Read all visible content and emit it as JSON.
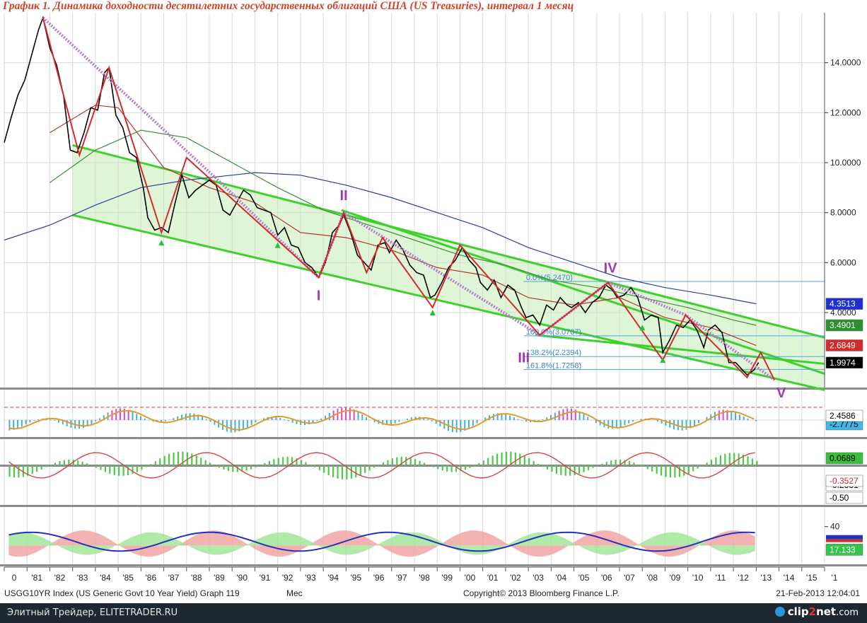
{
  "chart_data": {
    "type": "line",
    "title": "График 1.   Динамика доходности десятилетних государственных облигаций США (US Treasuries), интервал 1 месяц",
    "x_ticks": [
      "0",
      "'81",
      "'82",
      "'83",
      "'84",
      "'85",
      "'86",
      "'87",
      "'88",
      "'89",
      "'90",
      "'91",
      "'92",
      "'93",
      "'94",
      "'95",
      "'96",
      "'97",
      "'98",
      "'99",
      "'00",
      "'01",
      "'02",
      "'03",
      "'04",
      "'05",
      "'06",
      "'07",
      "'08",
      "'09",
      "'10",
      "'11",
      "'12",
      "'13",
      "'14",
      "'15",
      "'1"
    ],
    "xlim": [
      1980,
      2016
    ],
    "main_panel": {
      "ylim": [
        1.0,
        16.0
      ],
      "y_ticks": [
        "14.0000",
        "12.0000",
        "10.0000",
        "8.0000",
        "6.0000",
        "4.0000"
      ],
      "series": [
        {
          "values": [
            [
              1980.0,
              10.8
            ],
            [
              1980.3,
              11.8
            ],
            [
              1980.6,
              12.7
            ],
            [
              1980.9,
              13.3
            ],
            [
              1981.2,
              14.3
            ],
            [
              1981.5,
              15.3
            ],
            [
              1981.7,
              15.8
            ],
            [
              1982.0,
              14.6
            ],
            [
              1982.3,
              13.9
            ],
            [
              1982.6,
              12.7
            ],
            [
              1982.9,
              10.5
            ],
            [
              1983.2,
              10.4
            ],
            [
              1983.5,
              11.2
            ],
            [
              1983.8,
              12.2
            ],
            [
              1984.1,
              12.1
            ],
            [
              1984.4,
              13.6
            ],
            [
              1984.6,
              13.8
            ],
            [
              1984.9,
              11.9
            ],
            [
              1985.2,
              11.4
            ],
            [
              1985.5,
              10.4
            ],
            [
              1985.8,
              10.2
            ],
            [
              1986.1,
              9.0
            ],
            [
              1986.3,
              7.8
            ],
            [
              1986.6,
              7.3
            ],
            [
              1986.9,
              7.4
            ],
            [
              1987.2,
              7.2
            ],
            [
              1987.5,
              8.4
            ],
            [
              1987.8,
              9.5
            ],
            [
              1988.1,
              8.6
            ],
            [
              1988.4,
              8.9
            ],
            [
              1988.7,
              9.1
            ],
            [
              1989.0,
              9.3
            ],
            [
              1989.3,
              9.1
            ],
            [
              1989.6,
              8.1
            ],
            [
              1989.9,
              7.9
            ],
            [
              1990.2,
              8.4
            ],
            [
              1990.5,
              8.9
            ],
            [
              1990.8,
              8.7
            ],
            [
              1991.1,
              8.2
            ],
            [
              1991.4,
              8.1
            ],
            [
              1991.7,
              8.0
            ],
            [
              1992.0,
              7.1
            ],
            [
              1992.3,
              7.4
            ],
            [
              1992.6,
              6.7
            ],
            [
              1992.9,
              6.6
            ],
            [
              1993.2,
              6.0
            ],
            [
              1993.5,
              5.8
            ],
            [
              1993.8,
              5.4
            ],
            [
              1994.1,
              6.0
            ],
            [
              1994.4,
              7.2
            ],
            [
              1994.7,
              7.5
            ],
            [
              1994.9,
              7.9
            ],
            [
              1995.2,
              7.2
            ],
            [
              1995.5,
              6.3
            ],
            [
              1995.8,
              6.0
            ],
            [
              1996.1,
              5.7
            ],
            [
              1996.4,
              6.7
            ],
            [
              1996.7,
              6.8
            ],
            [
              1996.9,
              6.4
            ],
            [
              1997.2,
              6.9
            ],
            [
              1997.5,
              6.5
            ],
            [
              1997.8,
              5.9
            ],
            [
              1998.1,
              5.6
            ],
            [
              1998.4,
              5.5
            ],
            [
              1998.7,
              4.6
            ],
            [
              1998.9,
              4.7
            ],
            [
              1999.2,
              5.2
            ],
            [
              1999.5,
              5.8
            ],
            [
              1999.8,
              6.1
            ],
            [
              2000.1,
              6.6
            ],
            [
              2000.4,
              6.1
            ],
            [
              2000.7,
              5.8
            ],
            [
              2000.9,
              5.2
            ],
            [
              2001.2,
              4.9
            ],
            [
              2001.5,
              5.3
            ],
            [
              2001.8,
              4.6
            ],
            [
              2002.1,
              5.1
            ],
            [
              2002.4,
              4.9
            ],
            [
              2002.7,
              4.2
            ],
            [
              2002.9,
              3.8
            ],
            [
              2003.2,
              3.9
            ],
            [
              2003.5,
              3.5
            ],
            [
              2003.8,
              4.3
            ],
            [
              2004.1,
              4.1
            ],
            [
              2004.4,
              4.6
            ],
            [
              2004.7,
              4.3
            ],
            [
              2004.9,
              4.2
            ],
            [
              2005.2,
              4.4
            ],
            [
              2005.5,
              4.0
            ],
            [
              2005.8,
              4.4
            ],
            [
              2006.1,
              4.6
            ],
            [
              2006.4,
              5.1
            ],
            [
              2006.7,
              4.9
            ],
            [
              2006.9,
              4.6
            ],
            [
              2007.2,
              4.7
            ],
            [
              2007.5,
              5.0
            ],
            [
              2007.8,
              4.6
            ],
            [
              2008.1,
              3.7
            ],
            [
              2008.4,
              3.9
            ],
            [
              2008.7,
              3.8
            ],
            [
              2008.9,
              2.4
            ],
            [
              2009.2,
              2.9
            ],
            [
              2009.5,
              3.5
            ],
            [
              2009.8,
              3.4
            ],
            [
              2010.1,
              3.7
            ],
            [
              2010.4,
              3.3
            ],
            [
              2010.7,
              2.6
            ],
            [
              2010.9,
              3.3
            ],
            [
              2011.2,
              3.5
            ],
            [
              2011.5,
              3.2
            ],
            [
              2011.8,
              2.0
            ],
            [
              2012.1,
              2.0
            ],
            [
              2012.4,
              1.7
            ],
            [
              2012.6,
              1.5
            ],
            [
              2012.9,
              1.7
            ],
            [
              2013.1,
              2.0
            ]
          ],
          "color": "#000000"
        }
      ],
      "zigzag": [
        [
          1981.7,
          15.8
        ],
        [
          1983.3,
          10.3
        ],
        [
          1984.6,
          13.8
        ],
        [
          1986.9,
          7.2
        ],
        [
          1988.0,
          10.2
        ],
        [
          1993.8,
          5.4
        ],
        [
          1994.9,
          8.0
        ],
        [
          1995.9,
          5.6
        ],
        [
          1996.6,
          7.0
        ],
        [
          1998.8,
          4.2
        ],
        [
          2000.0,
          6.7
        ],
        [
          2003.5,
          3.1
        ],
        [
          2006.5,
          5.2
        ],
        [
          2008.9,
          2.1
        ],
        [
          2009.9,
          3.9
        ],
        [
          2012.6,
          1.4
        ],
        [
          2013.2,
          2.4
        ],
        [
          2013.8,
          1.3
        ]
      ],
      "moving_averages": [
        {
          "color": "#2a3f9c",
          "values": [
            [
              1980.0,
              6.9
            ],
            [
              1982.0,
              7.5
            ],
            [
              1984.0,
              8.3
            ],
            [
              1986.0,
              9.0
            ],
            [
              1988.0,
              9.3
            ],
            [
              1990.0,
              9.5
            ],
            [
              1991.0,
              9.6
            ],
            [
              1993.0,
              9.5
            ],
            [
              1995.0,
              9.1
            ],
            [
              1997.0,
              8.6
            ],
            [
              1999.0,
              8.0
            ],
            [
              2001.0,
              7.4
            ],
            [
              2003.0,
              6.6
            ],
            [
              2005.0,
              6.0
            ],
            [
              2007.0,
              5.4
            ],
            [
              2009.0,
              5.0
            ],
            [
              2011.0,
              4.7
            ],
            [
              2013.0,
              4.35
            ]
          ]
        },
        {
          "color": "#3c8f3a",
          "values": [
            [
              1982.0,
              9.2
            ],
            [
              1984.0,
              10.5
            ],
            [
              1986.0,
              11.3
            ],
            [
              1988.0,
              11.0
            ],
            [
              1990.0,
              10.0
            ],
            [
              1992.0,
              9.0
            ],
            [
              1994.0,
              8.1
            ],
            [
              1996.0,
              7.5
            ],
            [
              1998.0,
              6.9
            ],
            [
              2000.0,
              6.3
            ],
            [
              2002.0,
              5.9
            ],
            [
              2004.0,
              5.3
            ],
            [
              2006.0,
              5.0
            ],
            [
              2008.0,
              4.6
            ],
            [
              2010.0,
              4.2
            ],
            [
              2012.0,
              3.7
            ],
            [
              2013.0,
              3.49
            ]
          ]
        },
        {
          "color": "#b03a2e",
          "values": [
            [
              1982.0,
              11.2
            ],
            [
              1984.0,
              12.3
            ],
            [
              1985.0,
              12.2
            ],
            [
              1987.0,
              9.8
            ],
            [
              1989.0,
              9.0
            ],
            [
              1991.0,
              8.4
            ],
            [
              1993.0,
              7.2
            ],
            [
              1995.0,
              7.0
            ],
            [
              1997.0,
              6.5
            ],
            [
              1999.0,
              5.8
            ],
            [
              2001.0,
              5.5
            ],
            [
              2003.0,
              4.6
            ],
            [
              2005.0,
              4.3
            ],
            [
              2007.0,
              4.6
            ],
            [
              2009.0,
              3.8
            ],
            [
              2011.0,
              3.4
            ],
            [
              2013.0,
              2.68
            ]
          ]
        }
      ],
      "channel": {
        "upper": [
          [
            1983.0,
            10.7
          ],
          [
            2016.0,
            3.0
          ]
        ],
        "lower": [
          [
            1983.0,
            7.9
          ],
          [
            2016.0,
            0.9
          ]
        ],
        "mid": [
          [
            1994.8,
            8.1
          ],
          [
            2016.0,
            1.55
          ]
        ],
        "lower2": [
          [
            2003.3,
            3.1
          ],
          [
            2016.0,
            1.95
          ]
        ]
      },
      "trendline": [
        [
          1981.7,
          15.8
        ],
        [
          1989.5,
          9.2
        ],
        [
          1993.8,
          5.4
        ],
        [
          1994.9,
          8.0
        ],
        [
          2003.5,
          3.1
        ],
        [
          2006.5,
          5.2
        ],
        [
          2009.9,
          3.9
        ],
        [
          2013.8,
          1.3
        ]
      ],
      "fib_levels": [
        {
          "label": "0.0%(5.2470)",
          "value": 5.247
        },
        {
          "label": "100.0%(3.0707)",
          "value": 3.0707
        },
        {
          "label": "138.2%(2.2394)",
          "value": 2.2394
        },
        {
          "label": "161.8%(1.7258)",
          "value": 1.7258
        }
      ],
      "wave_labels": [
        {
          "text": "I",
          "x": 1993.8,
          "y": 4.5
        },
        {
          "text": "II",
          "x": 1994.9,
          "y": 8.5
        },
        {
          "text": "III",
          "x": 2002.8,
          "y": 2.0
        },
        {
          "text": "IV",
          "x": 2006.6,
          "y": 5.6
        },
        {
          "text": "V",
          "x": 2014.1,
          "y": 0.6
        }
      ],
      "markers": [
        [
          1986.9,
          6.8
        ],
        [
          1992.0,
          6.7
        ],
        [
          1998.8,
          4.0
        ],
        [
          2008.0,
          3.4
        ],
        [
          2008.9,
          2.1
        ]
      ],
      "badges": [
        {
          "text": "4.3513",
          "value": 4.3513,
          "bg": "#1d2fd6",
          "fg": "#ffffff"
        },
        {
          "text": "3.4901",
          "value": 3.4901,
          "bg": "#2f8f2f",
          "fg": "#ffffff"
        },
        {
          "text": "2.6849",
          "value": 2.6849,
          "bg": "#d42a2a",
          "fg": "#ffffff"
        },
        {
          "text": "1.9974",
          "value": 1.9974,
          "bg": "#000000",
          "fg": "#ffffff"
        }
      ]
    },
    "panel2": {
      "badges": [
        {
          "text": "-2.7775",
          "bg": "#3fb6e6",
          "fg": "#000000"
        },
        {
          "text": "2.4586",
          "bg": "#ffffff",
          "fg": "#000000"
        }
      ]
    },
    "panel3": {
      "badges": [
        {
          "text": "0.0689",
          "bg": "#38c038",
          "fg": "#000000"
        },
        {
          "text": "-0.2831",
          "bg": "#ffffff",
          "fg": "#000000"
        },
        {
          "text": "-0.50",
          "bg": "#ffffff",
          "fg": "#000000"
        },
        {
          "text": "-0.3527",
          "bg": "#ffffff",
          "fg": "#d42a2a"
        }
      ]
    },
    "panel4": {
      "y_ticks": [
        "40"
      ],
      "badges": [
        {
          "text": "17.133",
          "bg": "#33c44a",
          "fg": "#ffffff"
        }
      ]
    }
  },
  "footer": {
    "index_label": "USGG10YR Index (US Generic Govt 10 Year Yield) Graph 119",
    "period_label": "Mec",
    "copyright": "Copyright© 2013 Bloomberg Finance L.P.",
    "timestamp": "21-Feb-2013 12:04:01"
  },
  "watermark_bar": {
    "left_text": "Элитный Трейдер, ELITETRADER.RU",
    "brand_main": "clip",
    "brand_two": "2",
    "brand_end": "net",
    "brand_tld": ".com"
  }
}
